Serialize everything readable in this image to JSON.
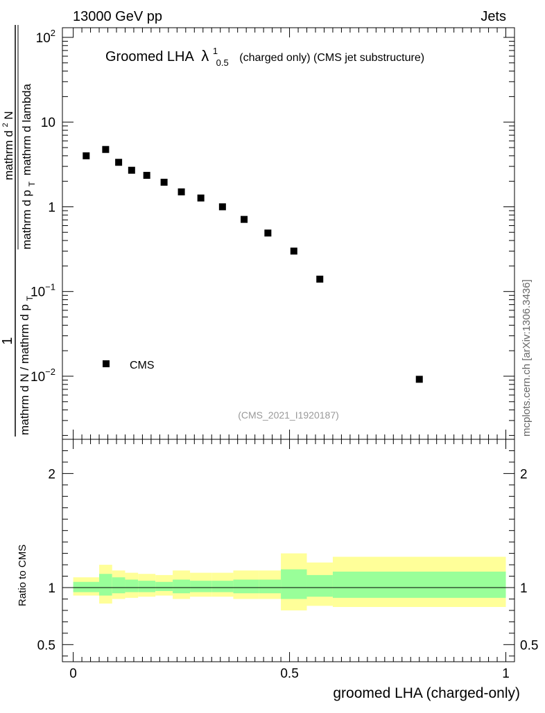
{
  "header": {
    "energy_label": "13000 GeV pp",
    "category_label": "Jets"
  },
  "side_label": "mcplots.cern.ch [arXiv:1306.3436]",
  "chart_data": [
    {
      "type": "scatter",
      "title_main": "Groomed LHA",
      "title_symbol": "λ",
      "title_sup": "1",
      "title_sub": "0.5",
      "title_rest": "(charged only) (CMS jet substructure)",
      "analysis_label": "(CMS_2021_I1920187)",
      "y_scale": "log",
      "ylim": [
        0.0018,
        130
      ],
      "xlim": [
        -0.025,
        1.02
      ],
      "ylabel_parts": {
        "numerator_one": "1",
        "denominator": "mathrm d N / mathrm d p",
        "denominator_sub": "T",
        "right_num": "mathrm d",
        "right_num_sup": "2",
        "right_num_tail": "N",
        "right_den": "mathrm d p",
        "right_den_sub": "T",
        "right_den_tail": "mathrm d lambda"
      },
      "y_tick_labels": [
        {
          "value": 0.01,
          "base": "10",
          "exp": "−2"
        },
        {
          "value": 0.1,
          "base": "10",
          "exp": "−1"
        },
        {
          "value": 1,
          "base": "1",
          "exp": ""
        },
        {
          "value": 10,
          "base": "10",
          "exp": ""
        },
        {
          "value": 100,
          "base": "10",
          "exp": "2"
        }
      ],
      "legend": {
        "entries": [
          "CMS"
        ],
        "placement": "lower-left"
      },
      "series": [
        {
          "name": "CMS",
          "x": [
            0.03,
            0.075,
            0.105,
            0.135,
            0.17,
            0.21,
            0.25,
            0.295,
            0.345,
            0.395,
            0.45,
            0.51,
            0.57,
            0.8
          ],
          "y": [
            4.0,
            4.75,
            3.35,
            2.7,
            2.35,
            1.95,
            1.5,
            1.27,
            1.0,
            0.71,
            0.49,
            0.3,
            0.14,
            0.0092
          ]
        }
      ]
    },
    {
      "type": "area",
      "ylabel": "Ratio to CMS",
      "xlabel": "groomed LHA (charged-only)",
      "xlim": [
        -0.025,
        1.02
      ],
      "ylim": [
        0.35,
        2.3
      ],
      "x_tick_labels": [
        "0",
        "0.5",
        "1"
      ],
      "x_tick_values": [
        0,
        0.5,
        1
      ],
      "y_tick_labels": [
        "0.5",
        "1",
        "2"
      ],
      "y_tick_values": [
        0.5,
        1,
        2
      ],
      "reference_line": 1,
      "bands": [
        {
          "x0": 0.0,
          "x1": 0.06,
          "yellow": [
            0.93,
            1.09
          ],
          "green": [
            0.96,
            1.05
          ]
        },
        {
          "x0": 0.06,
          "x1": 0.09,
          "yellow": [
            0.86,
            1.2
          ],
          "green": [
            0.93,
            1.12
          ]
        },
        {
          "x0": 0.09,
          "x1": 0.12,
          "yellow": [
            0.9,
            1.15
          ],
          "green": [
            0.95,
            1.09
          ]
        },
        {
          "x0": 0.12,
          "x1": 0.15,
          "yellow": [
            0.91,
            1.13
          ],
          "green": [
            0.96,
            1.07
          ]
        },
        {
          "x0": 0.15,
          "x1": 0.19,
          "yellow": [
            0.92,
            1.12
          ],
          "green": [
            0.96,
            1.06
          ]
        },
        {
          "x0": 0.19,
          "x1": 0.23,
          "yellow": [
            0.93,
            1.11
          ],
          "green": [
            0.97,
            1.05
          ]
        },
        {
          "x0": 0.23,
          "x1": 0.27,
          "yellow": [
            0.9,
            1.15
          ],
          "green": [
            0.95,
            1.07
          ]
        },
        {
          "x0": 0.27,
          "x1": 0.32,
          "yellow": [
            0.92,
            1.13
          ],
          "green": [
            0.96,
            1.06
          ]
        },
        {
          "x0": 0.32,
          "x1": 0.37,
          "yellow": [
            0.92,
            1.13
          ],
          "green": [
            0.96,
            1.06
          ]
        },
        {
          "x0": 0.37,
          "x1": 0.43,
          "yellow": [
            0.9,
            1.15
          ],
          "green": [
            0.95,
            1.07
          ]
        },
        {
          "x0": 0.43,
          "x1": 0.48,
          "yellow": [
            0.9,
            1.15
          ],
          "green": [
            0.95,
            1.07
          ]
        },
        {
          "x0": 0.48,
          "x1": 0.54,
          "yellow": [
            0.8,
            1.3
          ],
          "green": [
            0.9,
            1.16
          ]
        },
        {
          "x0": 0.54,
          "x1": 0.6,
          "yellow": [
            0.84,
            1.22
          ],
          "green": [
            0.92,
            1.11
          ]
        },
        {
          "x0": 0.6,
          "x1": 1.0,
          "yellow": [
            0.83,
            1.27
          ],
          "green": [
            0.91,
            1.14
          ]
        }
      ]
    }
  ],
  "colors": {
    "band_inner": "#99ff99",
    "band_outer": "#ffff99",
    "marker": "#000000",
    "analysis_label": "#999999",
    "side_label": "#666666"
  }
}
